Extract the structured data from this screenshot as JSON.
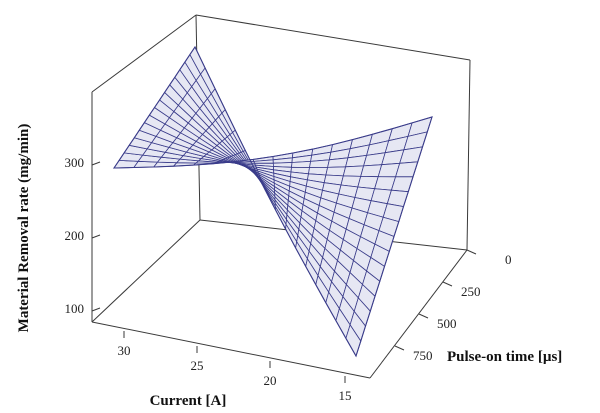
{
  "chart_data": {
    "type": "surface",
    "title": "",
    "xlabel": "Current [A]",
    "ylabel": "Pulse-on time [µs]",
    "zlabel": "Material Removal rate (mg/min)",
    "x_ticks": [
      "30",
      "25",
      "20",
      "15"
    ],
    "y_ticks": [
      "0",
      "250",
      "500",
      "750"
    ],
    "z_ticks": [
      "100",
      "200",
      "300"
    ],
    "x_range": [
      14,
      32
    ],
    "y_range": [
      0,
      900
    ],
    "z_range": [
      50,
      370
    ],
    "grid_size": [
      16,
      16
    ],
    "corner_values": {
      "current_14_pulse_0": 325,
      "current_32_pulse_0": 360,
      "current_32_pulse_900": 290,
      "current_14_pulse_900": 85
    },
    "colors": {
      "surface_fill": "#e6e7f3",
      "mesh_line": "#3a3c8a",
      "frame": "#3a3a3a"
    }
  }
}
